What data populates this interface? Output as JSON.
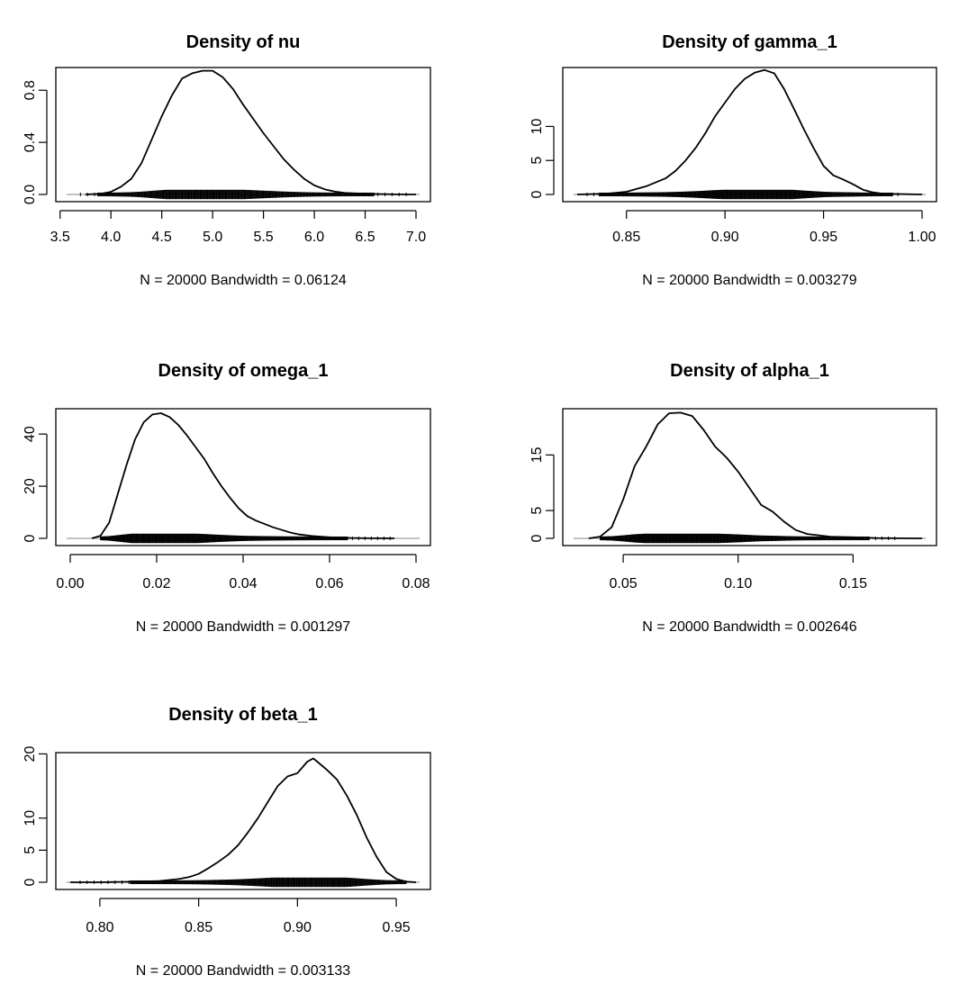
{
  "chart_data": [
    {
      "type": "line",
      "title": "Density of nu",
      "xlabel": "N = 20000   Bandwidth = 0.06124",
      "ylabel": "",
      "xlim": [
        3.6,
        7.0
      ],
      "ylim": [
        0,
        0.94
      ],
      "xticks": [
        "3.5",
        "4.0",
        "4.5",
        "5.0",
        "5.5",
        "6.0",
        "6.5",
        "7.0"
      ],
      "yticks": [
        "0.0",
        "0.4",
        "0.8"
      ],
      "rug_range": [
        3.7,
        6.95
      ],
      "series": [
        {
          "x": [
            3.75,
            3.9,
            4.0,
            4.1,
            4.2,
            4.3,
            4.4,
            4.5,
            4.6,
            4.7,
            4.8,
            4.9,
            5.0,
            5.1,
            5.2,
            5.3,
            5.4,
            5.5,
            5.6,
            5.7,
            5.8,
            5.9,
            6.0,
            6.1,
            6.2,
            6.3,
            6.5,
            6.8,
            7.0
          ],
          "y": [
            0.0,
            0.005,
            0.02,
            0.06,
            0.12,
            0.24,
            0.42,
            0.6,
            0.76,
            0.89,
            0.93,
            0.95,
            0.95,
            0.9,
            0.81,
            0.69,
            0.58,
            0.47,
            0.37,
            0.27,
            0.19,
            0.12,
            0.07,
            0.04,
            0.022,
            0.012,
            0.005,
            0.001,
            0.0
          ]
        }
      ]
    },
    {
      "type": "line",
      "title": "Density of gamma_1",
      "xlabel": "N = 20000   Bandwidth = 0.003279",
      "ylabel": "",
      "xlim": [
        0.825,
        1.0
      ],
      "ylim": [
        0,
        18
      ],
      "xticks": [
        "0.85",
        "0.90",
        "0.95",
        "1.00"
      ],
      "yticks": [
        "0",
        "5",
        "10"
      ],
      "rug_range": [
        0.83,
        0.99
      ],
      "series": [
        {
          "x": [
            0.825,
            0.84,
            0.85,
            0.86,
            0.87,
            0.875,
            0.88,
            0.885,
            0.89,
            0.895,
            0.9,
            0.905,
            0.91,
            0.915,
            0.92,
            0.925,
            0.93,
            0.935,
            0.94,
            0.945,
            0.95,
            0.955,
            0.96,
            0.965,
            0.97,
            0.975,
            0.98,
            1.0
          ],
          "y": [
            0.0,
            0.1,
            0.4,
            1.2,
            2.4,
            3.5,
            5.0,
            6.8,
            9.0,
            11.5,
            13.5,
            15.5,
            17.0,
            17.9,
            18.3,
            17.8,
            15.5,
            12.6,
            9.6,
            6.8,
            4.2,
            2.8,
            2.2,
            1.5,
            0.7,
            0.3,
            0.1,
            0.0
          ]
        }
      ]
    },
    {
      "type": "line",
      "title": "Density of omega_1",
      "xlabel": "N = 20000   Bandwidth = 0.001297",
      "ylabel": "",
      "xlim": [
        0.0,
        0.08
      ],
      "ylim": [
        0,
        48
      ],
      "xticks": [
        "0.00",
        "0.02",
        "0.04",
        "0.06",
        "0.08"
      ],
      "yticks": [
        "0",
        "20",
        "40"
      ],
      "rug_range": [
        0.007,
        0.075
      ],
      "series": [
        {
          "x": [
            0.005,
            0.007,
            0.009,
            0.011,
            0.013,
            0.015,
            0.017,
            0.019,
            0.021,
            0.023,
            0.025,
            0.027,
            0.029,
            0.031,
            0.033,
            0.035,
            0.037,
            0.039,
            0.041,
            0.043,
            0.045,
            0.047,
            0.049,
            0.051,
            0.053,
            0.056,
            0.06,
            0.065,
            0.07,
            0.075
          ],
          "y": [
            0.0,
            1.0,
            6.0,
            17.0,
            28.0,
            38.0,
            44.5,
            47.5,
            48.0,
            46.5,
            43.5,
            39.5,
            35.0,
            30.5,
            25.0,
            20.0,
            15.5,
            11.5,
            8.5,
            6.8,
            5.5,
            4.2,
            3.2,
            2.2,
            1.5,
            0.9,
            0.4,
            0.15,
            0.05,
            0.0
          ]
        }
      ]
    },
    {
      "type": "line",
      "title": "Density of alpha_1",
      "xlabel": "N = 20000   Bandwidth = 0.002646",
      "ylabel": "",
      "xlim": [
        0.03,
        0.18
      ],
      "ylim": [
        0,
        22.5
      ],
      "xticks": [
        "0.05",
        "0.10",
        "0.15"
      ],
      "yticks": [
        "0",
        "5",
        "15"
      ],
      "rug_range": [
        0.04,
        0.17
      ],
      "series": [
        {
          "x": [
            0.035,
            0.04,
            0.045,
            0.05,
            0.055,
            0.06,
            0.065,
            0.07,
            0.075,
            0.08,
            0.085,
            0.09,
            0.095,
            0.1,
            0.105,
            0.11,
            0.115,
            0.12,
            0.125,
            0.13,
            0.14,
            0.15,
            0.16,
            0.17,
            0.18
          ],
          "y": [
            0.0,
            0.3,
            2.0,
            7.0,
            13.0,
            16.5,
            20.5,
            22.5,
            22.6,
            22.0,
            19.5,
            16.5,
            14.5,
            12.0,
            9.0,
            6.0,
            4.8,
            3.0,
            1.5,
            0.8,
            0.3,
            0.2,
            0.05,
            0.01,
            0.0
          ]
        }
      ]
    },
    {
      "type": "line",
      "title": "Density of beta_1",
      "xlabel": "N = 20000   Bandwidth = 0.003133",
      "ylabel": "",
      "xlim": [
        0.785,
        0.96
      ],
      "ylim": [
        0,
        19.5
      ],
      "xticks": [
        "0.80",
        "0.85",
        "0.90",
        "0.95"
      ],
      "yticks": [
        "0",
        "5",
        "10",
        "20"
      ],
      "rug_range": [
        0.79,
        0.955
      ],
      "series": [
        {
          "x": [
            0.785,
            0.8,
            0.81,
            0.82,
            0.83,
            0.84,
            0.845,
            0.85,
            0.855,
            0.86,
            0.865,
            0.87,
            0.875,
            0.88,
            0.885,
            0.89,
            0.895,
            0.9,
            0.905,
            0.908,
            0.91,
            0.915,
            0.92,
            0.925,
            0.93,
            0.935,
            0.94,
            0.945,
            0.95,
            0.955,
            0.96
          ],
          "y": [
            0.0,
            0.0,
            0.05,
            0.1,
            0.2,
            0.5,
            0.8,
            1.3,
            2.2,
            3.2,
            4.3,
            5.8,
            7.8,
            10.0,
            12.5,
            15.0,
            16.5,
            17.0,
            18.8,
            19.3,
            18.8,
            17.5,
            16.0,
            13.5,
            10.5,
            7.0,
            4.0,
            1.6,
            0.5,
            0.1,
            0.0
          ]
        }
      ]
    }
  ]
}
